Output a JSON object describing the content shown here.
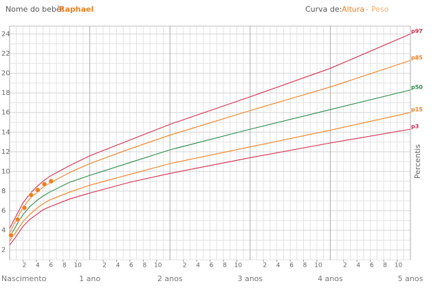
{
  "header": {
    "name_label": "Nome do bebê:",
    "baby_name": "Raphael",
    "curve_label": "Curva de:",
    "options": [
      "Altura",
      "Peso"
    ],
    "separator": "-"
  },
  "chart_data": {
    "type": "line",
    "y_label": "Percentis",
    "xlim": [
      0,
      60
    ],
    "ylim": [
      1,
      24.8
    ],
    "yticks": [
      2,
      4,
      6,
      8,
      10,
      12,
      14,
      16,
      18,
      20,
      22,
      24
    ],
    "y_minor_ticks": [
      1,
      3,
      5,
      7,
      9,
      11,
      13,
      15,
      17,
      19,
      21,
      23
    ],
    "x_major_ticks": [
      {
        "value": 0,
        "label": "Nascimento"
      },
      {
        "value": 12,
        "label": "1 ano"
      },
      {
        "value": 24,
        "label": "2 anos"
      },
      {
        "value": 36,
        "label": "3 anos"
      },
      {
        "value": 48,
        "label": "4 anos"
      },
      {
        "value": 60,
        "label": "5 anos"
      }
    ],
    "xticks": [
      2,
      4,
      6,
      8,
      10,
      {
        "value": 14,
        "label": "2"
      },
      {
        "value": 16,
        "label": "4"
      },
      {
        "value": 18,
        "label": "6"
      },
      {
        "value": 20,
        "label": "8"
      },
      {
        "value": 22,
        "label": "10"
      },
      {
        "value": 26,
        "label": "2"
      },
      {
        "value": 28,
        "label": "4"
      },
      {
        "value": 30,
        "label": "6"
      },
      {
        "value": 32,
        "label": "8"
      },
      {
        "value": 34,
        "label": "10"
      },
      {
        "value": 38,
        "label": "2"
      },
      {
        "value": 40,
        "label": "4"
      },
      {
        "value": 42,
        "label": "6"
      },
      {
        "value": 44,
        "label": "8"
      },
      {
        "value": 46,
        "label": "10"
      },
      {
        "value": 50,
        "label": "2"
      },
      {
        "value": 52,
        "label": "4"
      },
      {
        "value": 54,
        "label": "6"
      },
      {
        "value": 56,
        "label": "8"
      },
      {
        "value": 58,
        "label": "10"
      }
    ],
    "x_minor_ticks": [
      1,
      2,
      3,
      4,
      5,
      6,
      7,
      8,
      9,
      10,
      11,
      13,
      14,
      15,
      16,
      17,
      18,
      19,
      20,
      21,
      22,
      23,
      25,
      26,
      27,
      28,
      29,
      30,
      31,
      32,
      33,
      34,
      35,
      37,
      38,
      39,
      40,
      41,
      42,
      43,
      44,
      45,
      46,
      47,
      49,
      50,
      51,
      52,
      53,
      54,
      55,
      56,
      57,
      58,
      59
    ],
    "grid": true,
    "series": [
      {
        "name": "p97",
        "color": "#d42a4e",
        "x": [
          0,
          1,
          2,
          3,
          4,
          5,
          6,
          9,
          12,
          18,
          24,
          36,
          48,
          60
        ],
        "values": [
          4.2,
          5.5,
          6.8,
          7.7,
          8.4,
          9.0,
          9.5,
          10.6,
          11.6,
          13.2,
          14.8,
          17.6,
          20.5,
          24.0
        ]
      },
      {
        "name": "p85",
        "color": "#f07f1e",
        "x": [
          0,
          1,
          2,
          3,
          4,
          5,
          6,
          9,
          12,
          18,
          24,
          36,
          48,
          60
        ],
        "values": [
          3.7,
          5.1,
          6.3,
          7.2,
          7.8,
          8.4,
          8.8,
          9.9,
          10.8,
          12.3,
          13.7,
          16.2,
          18.6,
          21.3
        ]
      },
      {
        "name": "p50",
        "color": "#2a8a4a",
        "x": [
          0,
          1,
          2,
          3,
          4,
          5,
          6,
          9,
          12,
          18,
          24,
          36,
          48,
          60
        ],
        "values": [
          3.3,
          4.5,
          5.6,
          6.4,
          7.0,
          7.5,
          7.9,
          8.9,
          9.6,
          10.9,
          12.2,
          14.3,
          16.3,
          18.3
        ]
      },
      {
        "name": "p15",
        "color": "#f07f1e",
        "x": [
          0,
          1,
          2,
          3,
          4,
          5,
          6,
          9,
          12,
          18,
          24,
          36,
          48,
          60
        ],
        "values": [
          2.9,
          3.9,
          4.9,
          5.6,
          6.2,
          6.7,
          7.1,
          7.9,
          8.6,
          9.7,
          10.8,
          12.5,
          14.2,
          16.0
        ]
      },
      {
        "name": "p3",
        "color": "#d42a4e",
        "x": [
          0,
          1,
          2,
          3,
          4,
          5,
          6,
          9,
          12,
          18,
          24,
          36,
          48,
          60
        ],
        "values": [
          2.5,
          3.4,
          4.4,
          5.1,
          5.6,
          6.1,
          6.4,
          7.2,
          7.8,
          8.9,
          9.8,
          11.4,
          12.9,
          14.3
        ]
      }
    ],
    "measurements": {
      "color": "#f07f1e",
      "x": [
        0,
        1,
        2,
        3,
        4,
        5,
        6
      ],
      "values": [
        3.5,
        5.1,
        6.3,
        7.6,
        8.1,
        8.7,
        9.0
      ]
    }
  }
}
